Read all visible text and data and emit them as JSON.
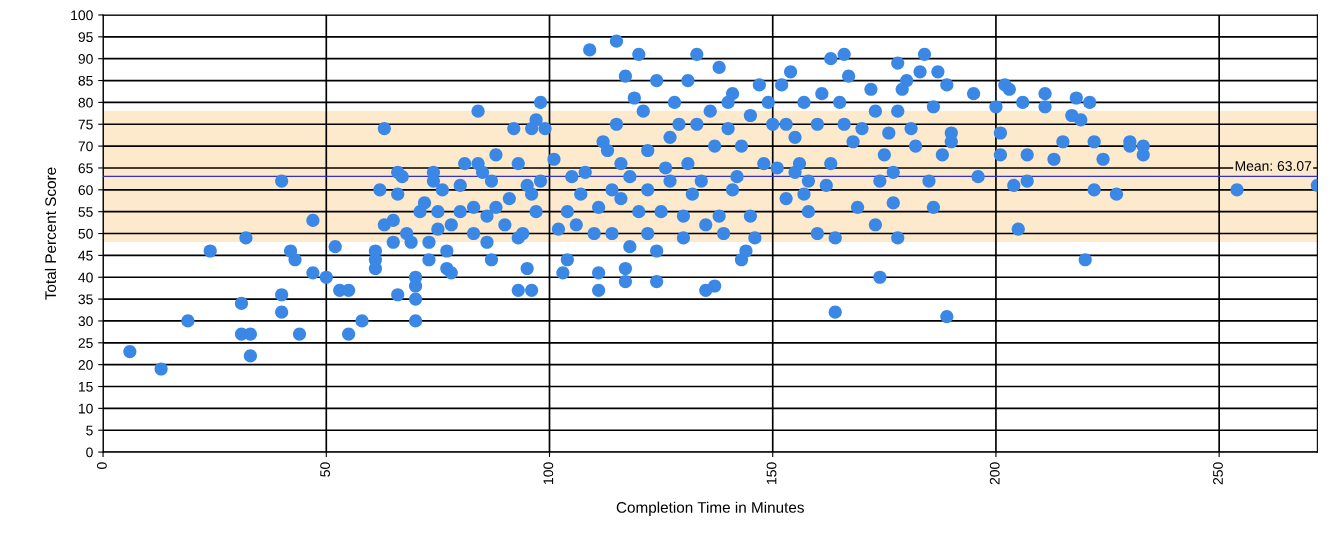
{
  "chart_data": {
    "type": "scatter",
    "xlabel": "Completion Time in Minutes",
    "ylabel": "Total Percent Score",
    "xlim": [
      0,
      272
    ],
    "xticks": [
      0,
      50,
      100,
      150,
      200,
      250
    ],
    "ylim": [
      0,
      100
    ],
    "yticks": [
      0,
      5,
      10,
      15,
      20,
      25,
      30,
      35,
      40,
      45,
      50,
      55,
      60,
      65,
      70,
      75,
      80,
      85,
      90,
      95,
      100
    ],
    "grid": true,
    "marker": "circle",
    "ref_lines": [
      {
        "axis": "y",
        "value": 63.07,
        "label": "Mean: 63.07",
        "color": "#3333cc"
      }
    ],
    "bands": [
      {
        "axis": "y",
        "from": 48.07,
        "to": 78.07,
        "color": "#fde9cc"
      }
    ],
    "series": [
      {
        "color": "#3a87e6",
        "x": [
          6,
          13,
          19,
          24,
          31,
          31,
          32,
          33,
          33,
          40,
          40,
          40,
          42,
          43,
          44,
          47,
          47,
          50,
          52,
          53,
          55,
          55,
          58,
          61,
          61,
          61,
          62,
          63,
          63,
          65,
          65,
          66,
          66,
          66,
          67,
          68,
          69,
          70,
          70,
          70,
          70,
          71,
          72,
          73,
          73,
          74,
          74,
          75,
          75,
          76,
          77,
          77,
          78,
          78,
          80,
          80,
          81,
          83,
          83,
          84,
          84,
          85,
          86,
          86,
          87,
          87,
          88,
          88,
          90,
          91,
          92,
          93,
          93,
          93,
          94,
          95,
          95,
          96,
          96,
          96,
          97,
          97,
          98,
          98,
          99,
          101,
          102,
          103,
          104,
          104,
          105,
          106,
          107,
          108,
          109,
          110,
          111,
          111,
          111,
          112,
          113,
          114,
          114,
          115,
          115,
          116,
          116,
          117,
          117,
          117,
          118,
          118,
          119,
          120,
          120,
          121,
          122,
          122,
          122,
          124,
          124,
          124,
          125,
          126,
          127,
          127,
          128,
          129,
          130,
          130,
          131,
          131,
          132,
          133,
          133,
          134,
          135,
          135,
          136,
          137,
          137,
          138,
          138,
          139,
          140,
          140,
          141,
          141,
          142,
          143,
          143,
          144,
          145,
          145,
          146,
          147,
          148,
          149,
          150,
          151,
          152,
          153,
          153,
          154,
          155,
          155,
          156,
          157,
          157,
          158,
          158,
          160,
          160,
          161,
          162,
          163,
          163,
          164,
          164,
          165,
          166,
          166,
          167,
          168,
          169,
          170,
          172,
          173,
          173,
          174,
          174,
          175,
          176,
          177,
          177,
          178,
          178,
          178,
          179,
          180,
          181,
          182,
          183,
          184,
          185,
          186,
          186,
          187,
          188,
          189,
          189,
          190,
          190,
          195,
          196,
          200,
          201,
          201,
          202,
          203,
          204,
          205,
          206,
          207,
          207,
          211,
          211,
          213,
          215,
          217,
          218,
          219,
          220,
          221,
          222,
          222,
          224,
          227,
          230,
          230,
          233,
          233,
          254,
          272
        ],
        "values": [
          23,
          19,
          30,
          46,
          34,
          27,
          49,
          22,
          27,
          36,
          32,
          62,
          46,
          44,
          27,
          41,
          53,
          40,
          47,
          37,
          37,
          27,
          30,
          44,
          42,
          46,
          60,
          74,
          52,
          48,
          53,
          36,
          59,
          64,
          63,
          50,
          48,
          30,
          38,
          35,
          40,
          55,
          57,
          44,
          48,
          64,
          62,
          55,
          51,
          60,
          46,
          42,
          41,
          52,
          55,
          61,
          66,
          50,
          56,
          78,
          66,
          64,
          48,
          54,
          44,
          62,
          56,
          68,
          52,
          58,
          74,
          49,
          66,
          37,
          50,
          61,
          42,
          37,
          59,
          74,
          76,
          55,
          80,
          62,
          74,
          67,
          51,
          41,
          44,
          55,
          63,
          52,
          59,
          64,
          92,
          50,
          37,
          41,
          56,
          71,
          69,
          50,
          60,
          94,
          75,
          66,
          58,
          86,
          39,
          42,
          47,
          63,
          81,
          91,
          55,
          78,
          69,
          60,
          50,
          85,
          39,
          46,
          55,
          65,
          72,
          62,
          80,
          75,
          49,
          54,
          85,
          66,
          59,
          91,
          75,
          62,
          37,
          52,
          78,
          38,
          70,
          88,
          54,
          50,
          74,
          80,
          82,
          60,
          63,
          44,
          70,
          46,
          77,
          54,
          49,
          84,
          66,
          80,
          75,
          65,
          84,
          58,
          75,
          87,
          64,
          72,
          66,
          80,
          59,
          62,
          55,
          75,
          50,
          82,
          61,
          90,
          66,
          49,
          32,
          80,
          75,
          91,
          86,
          71,
          56,
          74,
          83,
          78,
          52,
          62,
          40,
          68,
          73,
          64,
          57,
          89,
          49,
          78,
          83,
          85,
          74,
          70,
          87,
          91,
          62,
          79,
          56,
          87,
          68,
          31,
          84,
          73,
          71,
          82,
          63,
          79,
          73,
          68,
          84,
          83,
          61,
          51,
          80,
          62,
          68,
          82,
          79,
          67,
          71,
          77,
          81,
          76,
          44,
          80,
          71,
          60,
          67,
          59,
          71,
          70,
          68,
          70,
          60,
          61
        ]
      }
    ]
  }
}
